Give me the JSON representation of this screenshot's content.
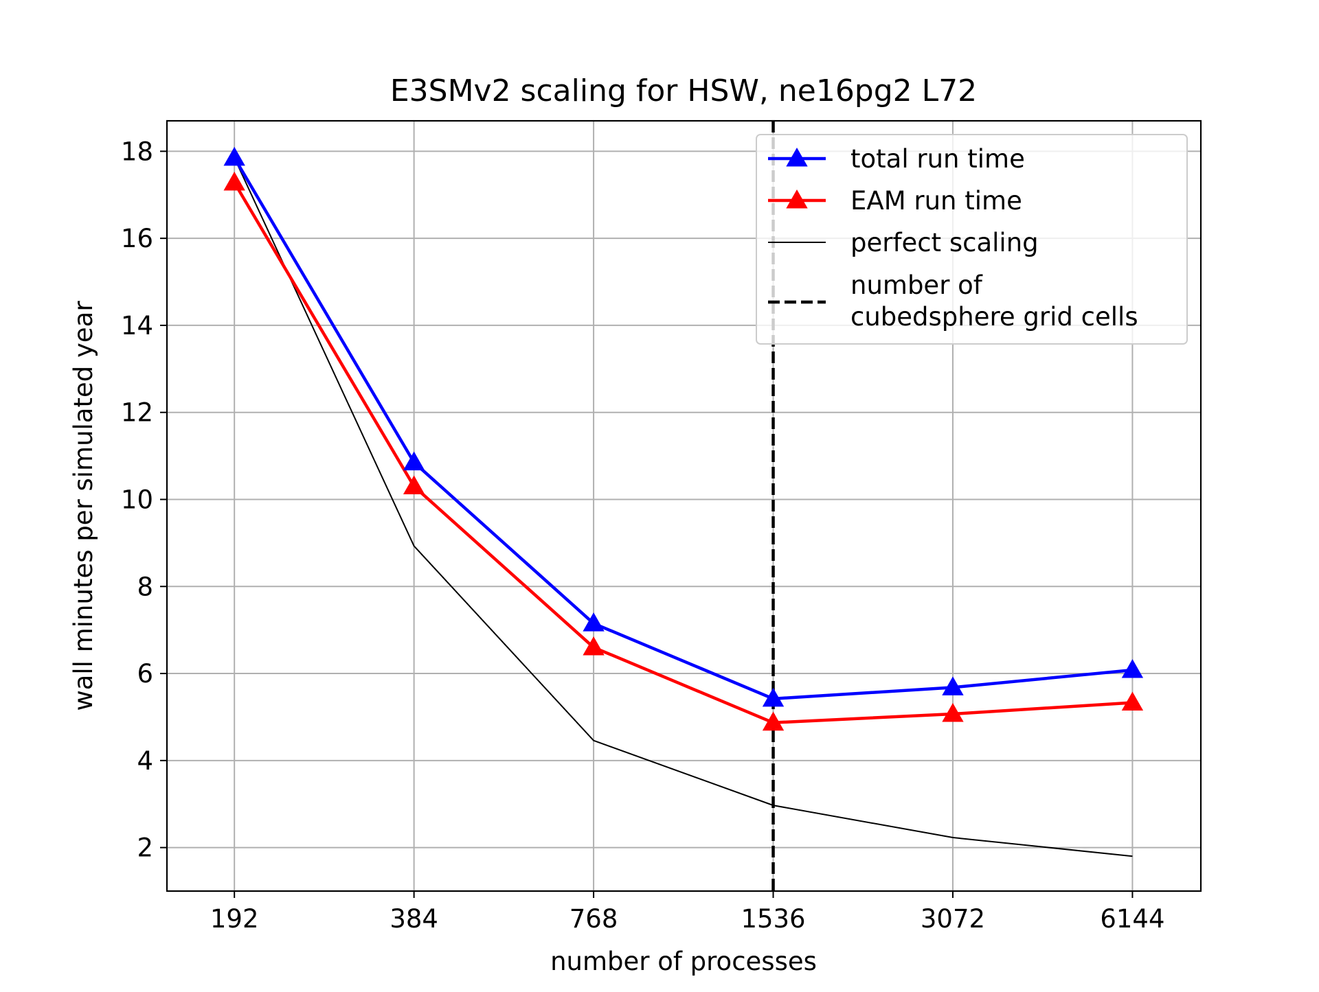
{
  "chart_data": {
    "type": "line",
    "title": "E3SMv2 scaling for HSW, ne16pg2 L72",
    "xlabel": "number of processes",
    "ylabel": "wall minutes per simulated year",
    "x_scale": "log2",
    "x": [
      192,
      384,
      768,
      1536,
      3072,
      6144
    ],
    "x_tick_labels": [
      "192",
      "384",
      "768",
      "1536",
      "3072",
      "6144"
    ],
    "xlim": [
      148,
      8000
    ],
    "ylim": [
      1.0,
      18.7
    ],
    "y_ticks": [
      2,
      4,
      6,
      8,
      10,
      12,
      14,
      16,
      18
    ],
    "y_tick_labels": [
      "2",
      "4",
      "6",
      "8",
      "10",
      "12",
      "14",
      "16",
      "18"
    ],
    "grid": true,
    "legend_position": "upper right",
    "series": [
      {
        "name": "total run time",
        "color": "#0000ff",
        "marker": "triangle",
        "style": "solid",
        "values": [
          17.85,
          10.85,
          7.15,
          5.42,
          5.68,
          6.08
        ]
      },
      {
        "name": "EAM run time",
        "color": "#ff0000",
        "marker": "triangle",
        "style": "solid",
        "values": [
          17.28,
          10.3,
          6.6,
          4.87,
          5.07,
          5.33
        ]
      },
      {
        "name": "perfect scaling",
        "color": "#000000",
        "marker": "none",
        "style": "thin",
        "values": [
          17.85,
          8.93,
          4.46,
          2.97,
          2.23,
          1.8
        ]
      }
    ],
    "vline": {
      "x": 1536,
      "name_lines": [
        "number of",
        "cubedsphere grid cells"
      ],
      "color": "#000000",
      "style": "dashed"
    }
  }
}
